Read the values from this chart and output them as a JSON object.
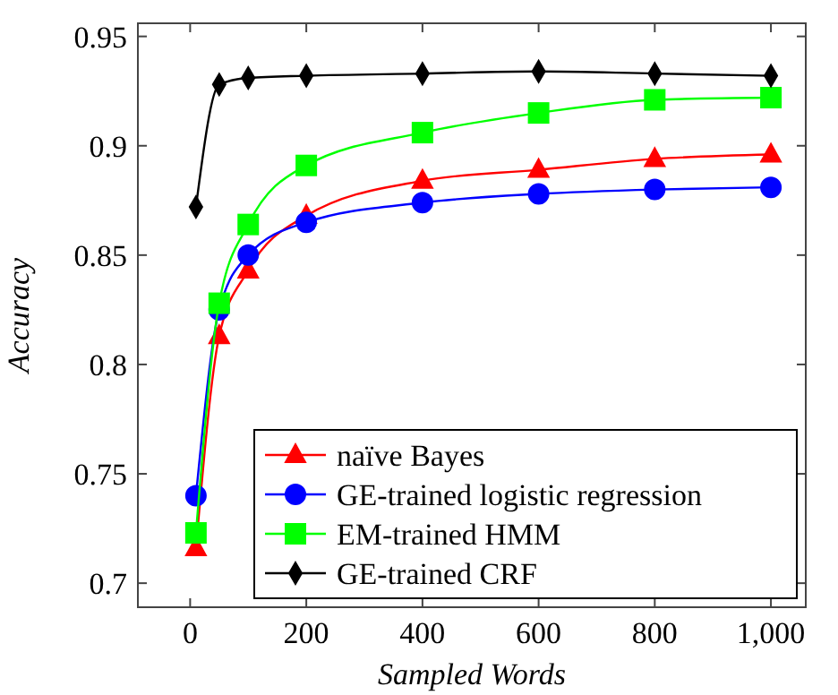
{
  "chart_data": {
    "type": "line",
    "xlabel": "Sampled Words",
    "ylabel": "Accuracy",
    "x": [
      10,
      50,
      100,
      200,
      400,
      600,
      800,
      1000
    ],
    "series": [
      {
        "name": "naïve Bayes",
        "color": "#ff0000",
        "marker": "triangle",
        "values": [
          0.716,
          0.813,
          0.843,
          0.868,
          0.884,
          0.889,
          0.894,
          0.896
        ]
      },
      {
        "name": "GE-trained logistic regression",
        "color": "#0000ff",
        "marker": "circle",
        "values": [
          0.74,
          0.825,
          0.85,
          0.865,
          0.874,
          0.878,
          0.88,
          0.881
        ]
      },
      {
        "name": "EM-trained HMM",
        "color": "#00ff00",
        "marker": "square",
        "values": [
          0.723,
          0.828,
          0.864,
          0.891,
          0.906,
          0.915,
          0.921,
          0.922
        ]
      },
      {
        "name": "GE-trained CRF",
        "color": "#000000",
        "marker": "diamond",
        "values": [
          0.872,
          0.928,
          0.931,
          0.932,
          0.933,
          0.934,
          0.933,
          0.932
        ]
      }
    ],
    "xlim": [
      -90,
      1060
    ],
    "ylim": [
      0.689,
      0.956
    ],
    "xticks": [
      0,
      200,
      400,
      600,
      800,
      {
        "value": 1000,
        "label": "1,000"
      }
    ],
    "yticks": [
      0.7,
      0.75,
      0.8,
      0.85,
      0.9,
      0.95
    ],
    "grid": false,
    "legend": "bottom right"
  }
}
